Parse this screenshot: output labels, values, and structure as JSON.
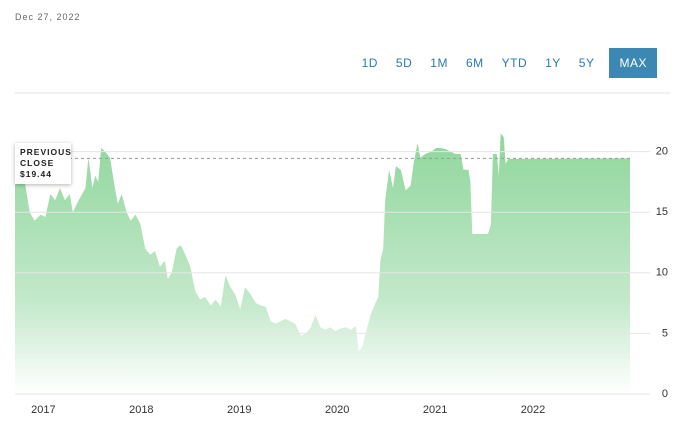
{
  "header": {
    "date": "Dec 27, 2022"
  },
  "range_buttons": [
    "1D",
    "5D",
    "1M",
    "6M",
    "YTD",
    "1Y",
    "5Y",
    "MAX"
  ],
  "active_button": 7,
  "chart_data": {
    "type": "area",
    "color": "#8fd69c",
    "x": [
      2016.71,
      2016.81,
      2016.86,
      2016.91,
      2016.97,
      2017.02,
      2017.07,
      2017.12,
      2017.17,
      2017.22,
      2017.27,
      2017.3,
      2017.36,
      2017.43,
      2017.46,
      2017.5,
      2017.53,
      2017.56,
      2017.59,
      2017.63,
      2017.68,
      2017.73,
      2017.76,
      2017.8,
      2017.85,
      2017.89,
      2017.94,
      2017.99,
      2018.04,
      2018.09,
      2018.14,
      2018.19,
      2018.24,
      2018.27,
      2018.31,
      2018.36,
      2018.4,
      2018.45,
      2018.5,
      2018.55,
      2018.6,
      2018.65,
      2018.71,
      2018.76,
      2018.81,
      2018.86,
      2018.91,
      2018.96,
      2019.01,
      2019.06,
      2019.11,
      2019.17,
      2019.22,
      2019.27,
      2019.32,
      2019.37,
      2019.42,
      2019.47,
      2019.52,
      2019.57,
      2019.63,
      2019.68,
      2019.73,
      2019.78,
      2019.83,
      2019.88,
      2019.93,
      2019.98,
      2020.03,
      2020.09,
      2020.14,
      2020.19,
      2020.22,
      2020.26,
      2020.3,
      2020.34,
      2020.39,
      2020.42,
      2020.44,
      2020.47,
      2020.49,
      2020.53,
      2020.57,
      2020.6,
      2020.65,
      2020.7,
      2020.75,
      2020.78,
      2020.82,
      2020.85,
      2020.9,
      2020.96,
      2021.01,
      2021.06,
      2021.11,
      2021.16,
      2021.21,
      2021.26,
      2021.29,
      2021.34,
      2021.36,
      2021.38,
      2021.47,
      2021.54,
      2021.57,
      2021.59,
      2021.63,
      2021.65,
      2021.67,
      2021.7,
      2021.72,
      2021.75,
      2021.88,
      2022.99
    ],
    "values": [
      18.1,
      17.5,
      15,
      14.3,
      14.8,
      14.6,
      16.5,
      16,
      17,
      16,
      16.5,
      15,
      16,
      17,
      19.5,
      17,
      18,
      17.5,
      20.3,
      20,
      19.5,
      17,
      15.7,
      16.5,
      15,
      14.3,
      14.8,
      14,
      12,
      11.5,
      11.8,
      10.5,
      11,
      9.5,
      10,
      12,
      12.3,
      11.5,
      10.5,
      8.5,
      7.8,
      8,
      7.3,
      7.8,
      7.2,
      9.8,
      8.8,
      8.2,
      7,
      8.8,
      8.3,
      7.5,
      7.3,
      7.2,
      6,
      5.8,
      6,
      6.2,
      6,
      5.8,
      4.8,
      5,
      5.5,
      6.5,
      5.5,
      5.3,
      5.5,
      5.2,
      5.4,
      5.5,
      5.3,
      5.6,
      3.5,
      4,
      5.3,
      6.5,
      7.5,
      8,
      11,
      12,
      16,
      18.5,
      17,
      18.8,
      18.5,
      16.8,
      17.2,
      19,
      20.7,
      19.5,
      19.8,
      20,
      20.3,
      20.3,
      20.2,
      20,
      19.8,
      19.8,
      18.5,
      18.5,
      17.5,
      13.2,
      13.2,
      13.2,
      14,
      19.8,
      19.8,
      18,
      21.5,
      21.2,
      19,
      19.4,
      19.4,
      19.44
    ],
    "xlim": [
      2016.71,
      2022.99
    ],
    "xticks": [
      2017,
      2018,
      2019,
      2020,
      2021,
      2022
    ],
    "ylim": [
      0,
      25
    ],
    "yticks": [
      0,
      5,
      10,
      15,
      20
    ],
    "grid": true,
    "previous_close": {
      "label": "PREVIOUS CLOSE",
      "value": 19.44,
      "value_label": "$19.44"
    }
  }
}
